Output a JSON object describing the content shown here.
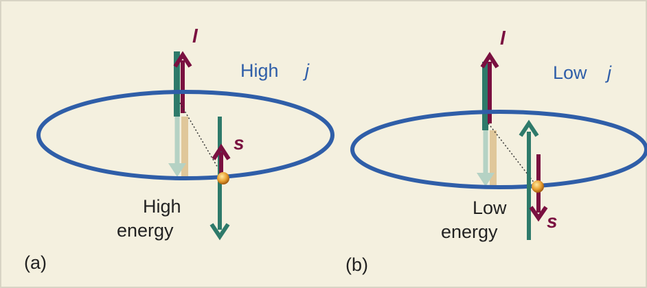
{
  "panels": [
    {
      "tag": "(a)",
      "l_symbol": "l",
      "j_word": "High",
      "j_symbol": "j",
      "s_symbol": "s",
      "energy_word": "High",
      "energy_label": "energy"
    },
    {
      "tag": "(b)",
      "l_symbol": "l",
      "j_word": "Low",
      "j_symbol": "j",
      "s_symbol": "s",
      "energy_word": "Low",
      "energy_label": "energy"
    }
  ]
}
